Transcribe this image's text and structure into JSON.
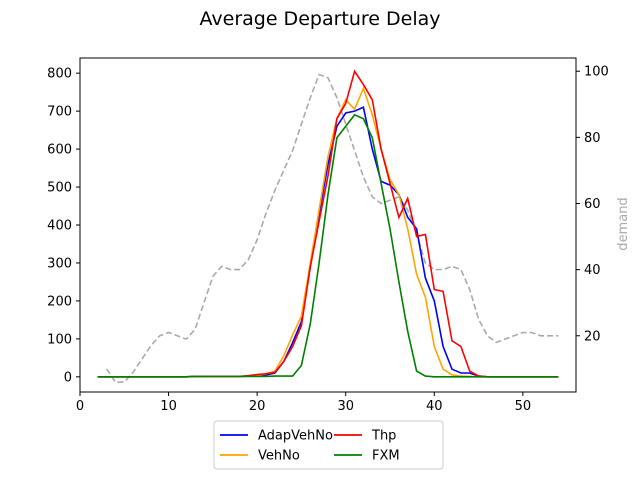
{
  "chart_data": {
    "type": "line",
    "title": "Average Departure Delay",
    "xlabel": "",
    "ylabel": "",
    "y2label": "demand",
    "xlim": [
      0,
      56
    ],
    "ylim": [
      -40,
      840
    ],
    "y2lim": [
      3,
      104
    ],
    "xticks": [
      0,
      10,
      20,
      30,
      40,
      50
    ],
    "yticks": [
      0,
      100,
      200,
      300,
      400,
      500,
      600,
      700,
      800
    ],
    "y2ticks": [
      20,
      40,
      60,
      80,
      100
    ],
    "grid": false,
    "legend_position": "bottom-center",
    "x": [
      2,
      3,
      4,
      5,
      6,
      7,
      8,
      9,
      10,
      11,
      12,
      13,
      14,
      15,
      16,
      17,
      18,
      19,
      20,
      21,
      22,
      23,
      24,
      25,
      26,
      27,
      28,
      29,
      30,
      31,
      32,
      33,
      34,
      35,
      36,
      37,
      38,
      39,
      40,
      41,
      42,
      43,
      44,
      45,
      46,
      47,
      48,
      49,
      50,
      51,
      52,
      53,
      54
    ],
    "series": [
      {
        "name": "AdapVehNo",
        "color": "#0000ff",
        "axis": "left",
        "values": [
          0,
          0,
          0,
          0,
          0,
          0,
          0,
          0,
          0,
          0,
          0,
          1,
          1,
          1,
          1,
          1,
          1,
          2,
          3,
          5,
          10,
          40,
          90,
          145,
          290,
          430,
          560,
          660,
          695,
          700,
          710,
          600,
          515,
          505,
          480,
          420,
          390,
          260,
          200,
          80,
          20,
          10,
          10,
          2,
          0,
          0,
          0,
          0,
          0,
          0,
          0,
          0,
          0
        ]
      },
      {
        "name": "VehNo",
        "color": "#ffa500",
        "axis": "left",
        "values": [
          0,
          0,
          0,
          0,
          0,
          0,
          0,
          0,
          0,
          0,
          0,
          1,
          1,
          1,
          1,
          1,
          1,
          2,
          4,
          8,
          15,
          55,
          110,
          160,
          300,
          440,
          580,
          680,
          730,
          705,
          760,
          690,
          600,
          520,
          480,
          390,
          270,
          210,
          80,
          20,
          5,
          2,
          1,
          0,
          0,
          0,
          0,
          0,
          0,
          0,
          0,
          0,
          0
        ]
      },
      {
        "name": "Thp",
        "color": "#ff0000",
        "axis": "left",
        "values": [
          0,
          0,
          0,
          0,
          0,
          0,
          0,
          0,
          0,
          0,
          0,
          1,
          1,
          1,
          1,
          1,
          1,
          3,
          6,
          8,
          12,
          40,
          80,
          135,
          290,
          410,
          530,
          680,
          720,
          805,
          770,
          730,
          600,
          510,
          420,
          470,
          370,
          375,
          230,
          225,
          95,
          80,
          15,
          2,
          0,
          0,
          0,
          0,
          0,
          0,
          0,
          0,
          0
        ]
      },
      {
        "name": "FXM",
        "color": "#008000",
        "axis": "left",
        "values": [
          0,
          0,
          0,
          0,
          0,
          0,
          0,
          0,
          0,
          0,
          0,
          1,
          1,
          1,
          1,
          1,
          1,
          1,
          1,
          1,
          2,
          2,
          2,
          30,
          140,
          300,
          480,
          630,
          660,
          690,
          680,
          630,
          510,
          390,
          250,
          120,
          15,
          2,
          0,
          0,
          0,
          0,
          0,
          0,
          0,
          0,
          0,
          0,
          0,
          0,
          0,
          0,
          0
        ]
      }
    ],
    "demand_series": {
      "axis": "right",
      "color": "#aaaaaa",
      "style": "dashed",
      "x": [
        3,
        4,
        5,
        6,
        7,
        8,
        9,
        10,
        11,
        12,
        13,
        14,
        15,
        16,
        17,
        18,
        19,
        20,
        21,
        22,
        23,
        24,
        25,
        26,
        27,
        28,
        29,
        30,
        31,
        32,
        33,
        34,
        35,
        36,
        37,
        38,
        39,
        40,
        41,
        42,
        43,
        44,
        45,
        46,
        47,
        48,
        49,
        50,
        51,
        52,
        53,
        54
      ],
      "values": [
        10,
        6,
        6,
        9,
        13,
        17,
        20,
        21,
        20,
        19,
        22,
        30,
        38,
        41,
        40,
        40,
        43,
        49,
        57,
        64,
        70,
        76,
        84,
        92,
        99,
        98,
        92,
        84,
        76,
        68,
        62,
        60,
        61,
        62,
        58,
        51,
        42,
        40,
        40,
        41,
        40,
        34,
        25,
        20,
        18,
        19,
        20,
        21,
        21,
        20,
        20,
        20
      ]
    }
  }
}
